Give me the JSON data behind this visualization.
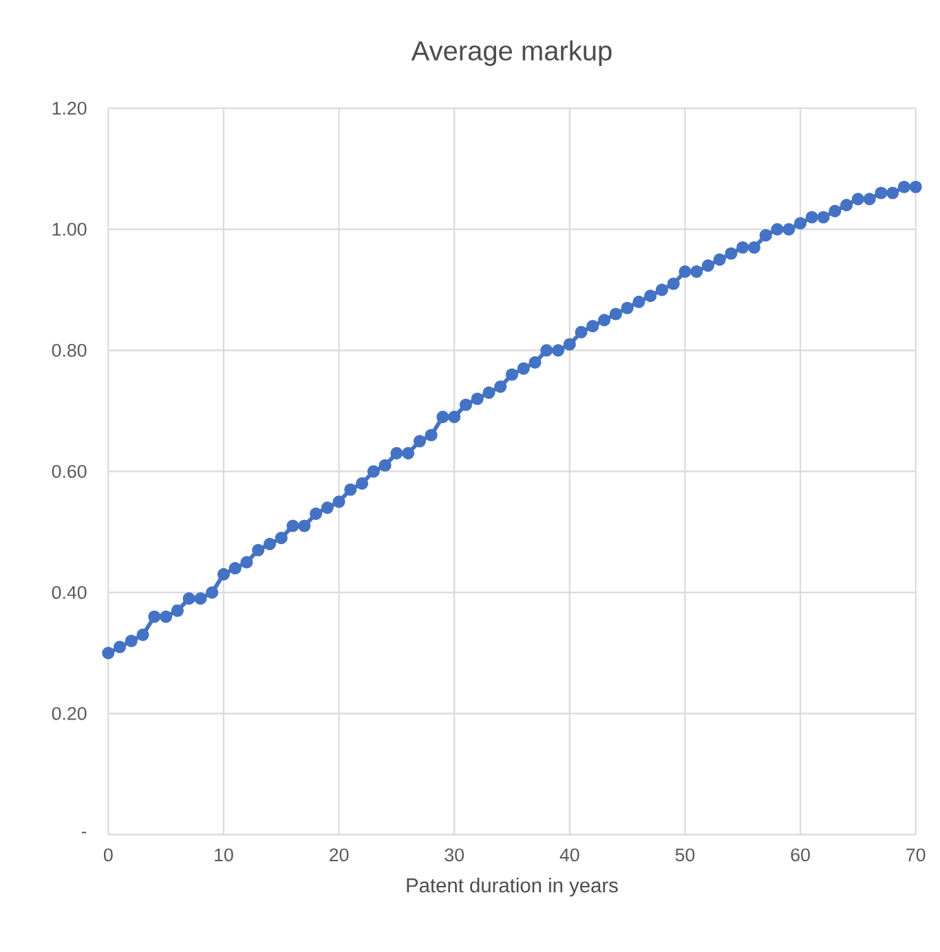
{
  "chart_data": {
    "type": "line",
    "title": "Average markup",
    "xlabel": "Patent duration in years",
    "x": [
      0,
      1,
      2,
      3,
      4,
      5,
      6,
      7,
      8,
      9,
      10,
      11,
      12,
      13,
      14,
      15,
      16,
      17,
      18,
      19,
      20,
      21,
      22,
      23,
      24,
      25,
      26,
      27,
      28,
      29,
      30,
      31,
      32,
      33,
      34,
      35,
      36,
      37,
      38,
      39,
      40,
      41,
      42,
      43,
      44,
      45,
      46,
      47,
      48,
      49,
      50,
      51,
      52,
      53,
      54,
      55,
      56,
      57,
      58,
      59,
      60,
      61,
      62,
      63,
      64,
      65,
      66,
      67,
      68,
      69,
      70
    ],
    "series": [
      {
        "color": "#4472c4",
        "values": [
          0.3,
          0.31,
          0.32,
          0.33,
          0.36,
          0.36,
          0.37,
          0.39,
          0.39,
          0.4,
          0.43,
          0.44,
          0.45,
          0.47,
          0.48,
          0.49,
          0.51,
          0.51,
          0.53,
          0.54,
          0.55,
          0.57,
          0.58,
          0.6,
          0.61,
          0.63,
          0.63,
          0.65,
          0.66,
          0.69,
          0.69,
          0.71,
          0.72,
          0.73,
          0.74,
          0.76,
          0.77,
          0.78,
          0.8,
          0.8,
          0.81,
          0.83,
          0.84,
          0.85,
          0.86,
          0.87,
          0.88,
          0.89,
          0.9,
          0.91,
          0.93,
          0.93,
          0.94,
          0.95,
          0.96,
          0.97,
          0.97,
          0.99,
          1.0,
          1.0,
          1.01,
          1.02,
          1.02,
          1.03,
          1.04,
          1.05,
          1.05,
          1.06,
          1.06,
          1.07,
          1.07
        ]
      }
    ],
    "xlim": [
      0,
      70
    ],
    "xticks": [
      0,
      10,
      20,
      30,
      40,
      50,
      60,
      70
    ],
    "ylim": [
      0,
      1.2
    ],
    "yticks": [
      {
        "value": 0,
        "label": "-"
      },
      {
        "value": 0.2,
        "label": "0.20"
      },
      {
        "value": 0.4,
        "label": "0.40"
      },
      {
        "value": 0.6,
        "label": "0.60"
      },
      {
        "value": 0.8,
        "label": "0.80"
      },
      {
        "value": 1.0,
        "label": "1.00"
      },
      {
        "value": 1.2,
        "label": "1.20"
      }
    ],
    "grid": true,
    "marker": "circle",
    "line_style": "solid",
    "legend": false
  }
}
